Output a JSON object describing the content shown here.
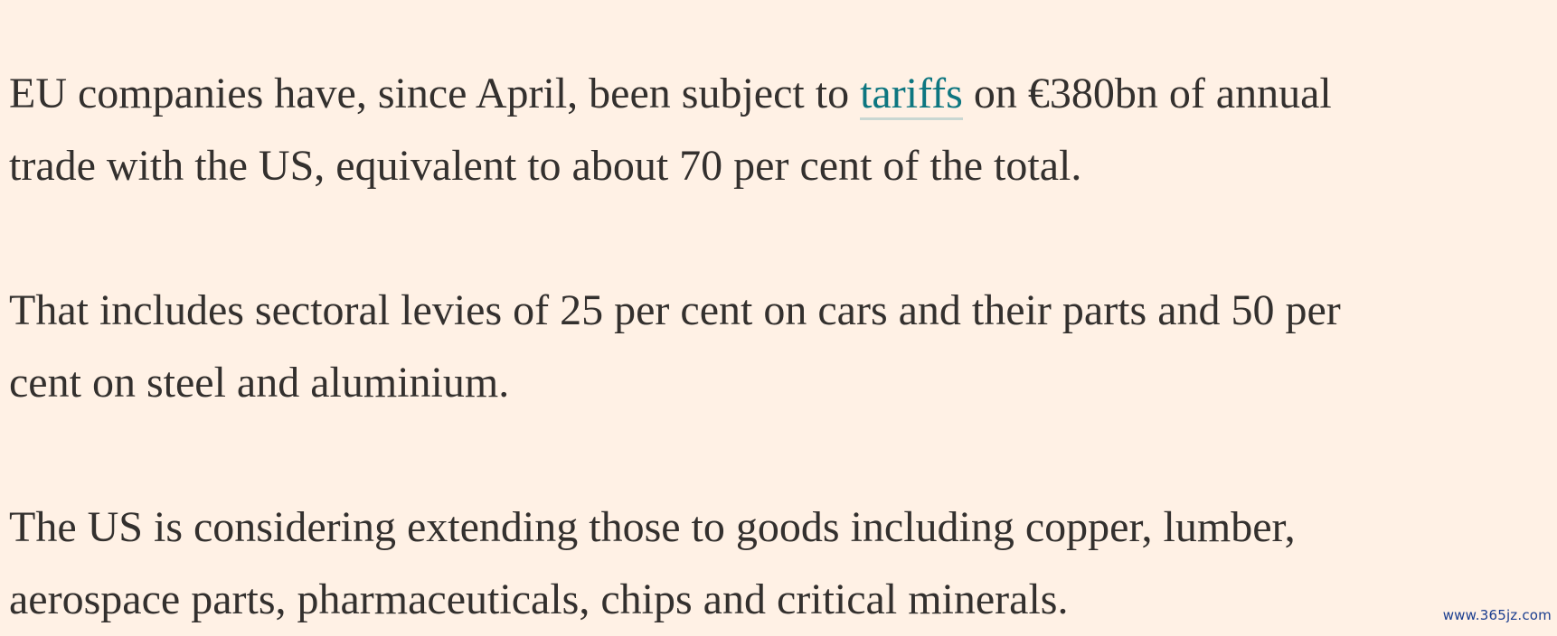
{
  "article": {
    "paragraphs": [
      {
        "lines": [
          {
            "before": "EU companies have, since April, been subject to ",
            "link": "tariffs",
            "after": " on €380bn of annual"
          },
          {
            "text": "trade with the US, equivalent to about 70 per cent of the total."
          }
        ]
      },
      {
        "lines": [
          {
            "text": "That includes sectoral levies of 25 per cent on cars and their parts and 50 per"
          },
          {
            "text": "cent on steel and aluminium."
          }
        ]
      },
      {
        "lines": [
          {
            "text": "The US is considering extending those to goods including copper, lumber,"
          },
          {
            "text": "aerospace parts, pharmaceuticals, chips and critical minerals."
          }
        ]
      }
    ]
  },
  "watermark": "www.365jz.com",
  "colors": {
    "background": "#fff1e5",
    "text": "#33302e",
    "link": "#0d7680"
  }
}
